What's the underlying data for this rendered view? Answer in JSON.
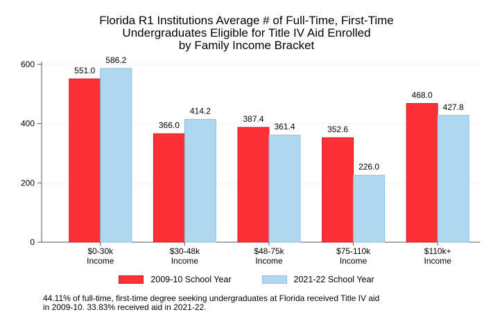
{
  "title": [
    "Florida R1 Institutions Average # of Full-Time, First-Time",
    "Undergraduates Eligible for Title IV Aid Enrolled",
    "by Family Income Bracket"
  ],
  "note": [
    "44.11% of full-time, first-time degree seeking undergraduates at Florida received Title IV aid",
    "in 2009-10. 33.83% received aid in 2021-22."
  ],
  "colors": {
    "series1": "#fc3035",
    "series1_edge": "#c81e23",
    "series2": "#b0d7f0",
    "series2_edge": "#8cbfe3",
    "grid": "#d9d9d9",
    "axis": "#555555"
  },
  "chart_data": {
    "type": "bar",
    "categories": [
      [
        "$0-30k",
        "Income"
      ],
      [
        "$30-48k",
        "Income"
      ],
      [
        "$48-75k",
        "Income"
      ],
      [
        "$75-110k",
        "Income"
      ],
      [
        "$110k+",
        "Income"
      ]
    ],
    "series": [
      {
        "name": "2009-10 School Year",
        "values": [
          551.0,
          366.0,
          387.4,
          352.6,
          468.0
        ],
        "labels": [
          "551.0",
          "366.0",
          "387.4",
          "352.6",
          "468.0"
        ]
      },
      {
        "name": "2021-22 School Year",
        "values": [
          586.2,
          414.2,
          361.4,
          226.0,
          427.8
        ],
        "labels": [
          "586.2",
          "414.2",
          "361.4",
          "226.0",
          "427.8"
        ]
      }
    ],
    "yticks": [
      "0",
      "200",
      "400",
      "600"
    ],
    "ylim": [
      0,
      600
    ],
    "grid": true,
    "legend": "bottom"
  }
}
